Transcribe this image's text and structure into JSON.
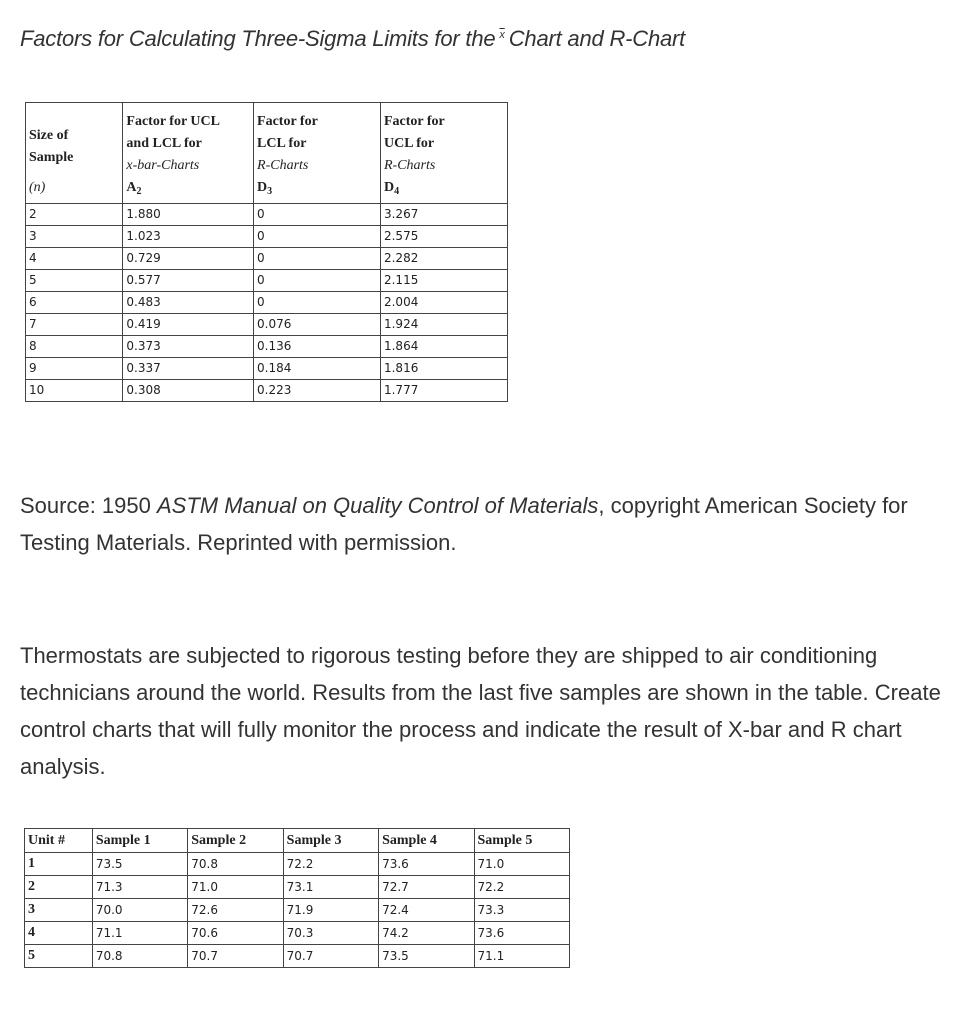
{
  "title": {
    "before": "Factors for Calculating Three-Sigma Limits for the",
    "symbol": "x",
    "after": "Chart and R-Chart"
  },
  "factors_table": {
    "headers": [
      {
        "lines": [
          "Size of",
          "Sample",
          "(n)"
        ]
      },
      {
        "lines": [
          "Factor for UCL",
          "and LCL for",
          "x-bar-Charts",
          "A2"
        ]
      },
      {
        "lines": [
          "Factor for",
          "LCL for",
          "R-Charts",
          "D3"
        ]
      },
      {
        "lines": [
          "Factor for",
          "UCL for",
          "R-Charts",
          "D4"
        ]
      }
    ],
    "rows": [
      [
        "2",
        "1.880",
        "0",
        "3.267"
      ],
      [
        "3",
        "1.023",
        "0",
        "2.575"
      ],
      [
        "4",
        "0.729",
        "0",
        "2.282"
      ],
      [
        "5",
        "0.577",
        "0",
        "2.115"
      ],
      [
        "6",
        "0.483",
        "0",
        "2.004"
      ],
      [
        "7",
        "0.419",
        "0.076",
        "1.924"
      ],
      [
        "8",
        "0.373",
        "0.136",
        "1.864"
      ],
      [
        "9",
        "0.337",
        "0.184",
        "1.816"
      ],
      [
        "10",
        "0.308",
        "0.223",
        "1.777"
      ]
    ]
  },
  "source": {
    "prefix": "Source: 1950 ",
    "italic": "ASTM Manual on Quality Control of Materials",
    "suffix": ", copyright American Society for Testing Materials. Reprinted with permission."
  },
  "problem": "Thermostats are subjected to rigorous testing before they are shipped to air conditioning technicians around the world. Results from the last five samples are shown in the table. Create control charts that will fully monitor the process and indicate the result of X-bar and R chart analysis.",
  "samples_table": {
    "headers": [
      "Unit #",
      "Sample 1",
      "Sample 2",
      "Sample 3",
      "Sample 4",
      "Sample 5"
    ],
    "rows": [
      [
        "1",
        "73.5",
        "70.8",
        "72.2",
        "73.6",
        "71.0"
      ],
      [
        "2",
        "71.3",
        "71.0",
        "73.1",
        "72.7",
        "72.2"
      ],
      [
        "3",
        "70.0",
        "72.6",
        "71.9",
        "72.4",
        "73.3"
      ],
      [
        "4",
        "71.1",
        "70.6",
        "70.3",
        "74.2",
        "73.6"
      ],
      [
        "5",
        "70.8",
        "70.7",
        "70.7",
        "73.5",
        "71.1"
      ]
    ]
  }
}
